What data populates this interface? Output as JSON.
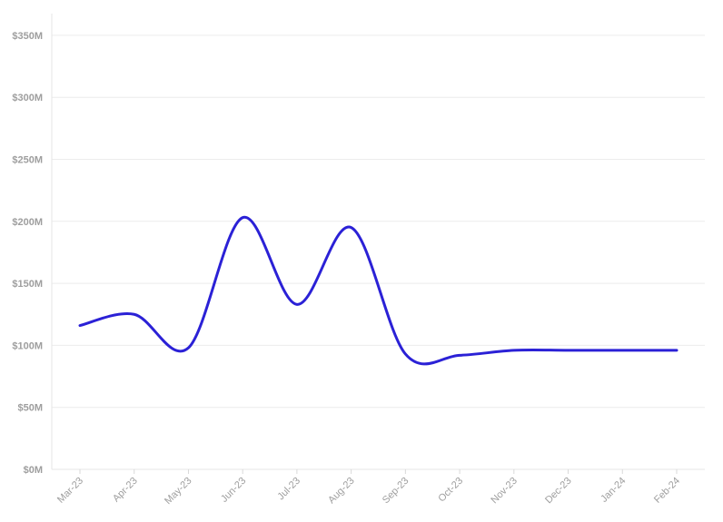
{
  "chart_data": {
    "type": "line",
    "title": "",
    "xlabel": "",
    "ylabel": "",
    "categories": [
      "Mar-23",
      "Apr-23",
      "May-23",
      "Jun-23",
      "Jul-23",
      "Aug-23",
      "Sep-23",
      "Oct-23",
      "Nov-23",
      "Dec-23",
      "Jan-24",
      "Feb-24"
    ],
    "y_ticks": [
      "$0M",
      "$50M",
      "$100M",
      "$150M",
      "$200M",
      "$250M",
      "$300M",
      "$350M"
    ],
    "ylim": [
      0,
      350
    ],
    "y_unit": "$M",
    "grid": true,
    "smooth": true,
    "series": [
      {
        "values": [
          116,
          125,
          98,
          203,
          133,
          195,
          93,
          92,
          96,
          96,
          96,
          96
        ],
        "color": "#2b21d6"
      }
    ]
  }
}
